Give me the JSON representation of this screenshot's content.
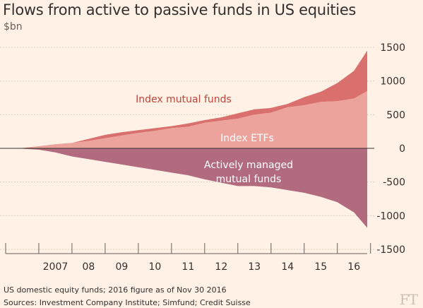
{
  "title": "Flows from active to passive funds in US equities",
  "unit": "$bn",
  "footnotes": [
    "US domestic equity funds; 2016 figure as of Nov 30 2016",
    "Sources: Investment Company Institute; Simfund; Credit Suisse"
  ],
  "brand": "FT",
  "colors": {
    "index_mutual_funds": "#d9706d",
    "index_etfs": "#eba39c",
    "actively_managed": "#b26a7f",
    "gridline": "#d8cdc1",
    "axis": "#66605c",
    "background": "#fff1e5"
  },
  "chart_data": {
    "type": "area",
    "title": "Flows from active to passive funds in US equities",
    "ylabel": "$bn",
    "xlabel": "",
    "ylim": [
      -1500,
      1500
    ],
    "yticks": [
      1500,
      1000,
      500,
      0,
      -500,
      -1000,
      -1500
    ],
    "ytick_labels": [
      "1500",
      "1000",
      "500",
      "0",
      "-500",
      "-1000",
      "-1500"
    ],
    "x_tick_labels": [
      "2007",
      "08",
      "09",
      "10",
      "11",
      "12",
      "13",
      "14",
      "15",
      "16"
    ],
    "xlim": [
      2006.0,
      2016.9
    ],
    "y_axis_position": "right",
    "grid": true,
    "series": [
      {
        "name": "Index ETFs",
        "role": "positive-base",
        "x": [
          2006.0,
          2006.5,
          2007.0,
          2007.5,
          2008.0,
          2008.5,
          2009.0,
          2009.5,
          2010.0,
          2010.5,
          2011.0,
          2011.5,
          2012.0,
          2012.5,
          2013.0,
          2013.5,
          2014.0,
          2014.5,
          2015.0,
          2015.5,
          2016.0,
          2016.5,
          2016.9
        ],
        "values": [
          0,
          5,
          30,
          60,
          80,
          110,
          150,
          190,
          230,
          260,
          300,
          320,
          380,
          410,
          440,
          500,
          530,
          610,
          640,
          690,
          700,
          740,
          850
        ]
      },
      {
        "name": "Index mutual funds",
        "role": "positive-stacked",
        "x": [
          2006.0,
          2006.5,
          2007.0,
          2007.5,
          2008.0,
          2008.5,
          2009.0,
          2009.5,
          2010.0,
          2010.5,
          2011.0,
          2011.5,
          2012.0,
          2012.5,
          2013.0,
          2013.5,
          2014.0,
          2014.5,
          2015.0,
          2015.5,
          2016.0,
          2016.5,
          2016.9
        ],
        "values": [
          0,
          5,
          20,
          40,
          80,
          140,
          200,
          240,
          270,
          300,
          330,
          370,
          420,
          460,
          520,
          580,
          600,
          660,
          760,
          840,
          970,
          1150,
          1450
        ]
      },
      {
        "name": "Actively managed mutual funds",
        "role": "negative",
        "x": [
          2006.0,
          2006.5,
          2007.0,
          2007.5,
          2008.0,
          2008.5,
          2009.0,
          2009.5,
          2010.0,
          2010.5,
          2011.0,
          2011.5,
          2012.0,
          2012.5,
          2013.0,
          2013.5,
          2014.0,
          2014.5,
          2015.0,
          2015.5,
          2016.0,
          2016.5,
          2016.9
        ],
        "values": [
          0,
          -5,
          -20,
          -60,
          -120,
          -160,
          -200,
          -240,
          -280,
          -320,
          -360,
          -400,
          -460,
          -510,
          -560,
          -560,
          -580,
          -620,
          -660,
          -720,
          -800,
          -950,
          -1180
        ]
      }
    ],
    "area_labels": [
      {
        "text": "Index mutual funds",
        "series": "Index mutual funds"
      },
      {
        "text": "Index ETFs",
        "series": "Index ETFs"
      },
      {
        "text": "Actively managed",
        "series": "Actively managed mutual funds"
      },
      {
        "text": "mutual funds",
        "series": "Actively managed mutual funds"
      }
    ]
  }
}
